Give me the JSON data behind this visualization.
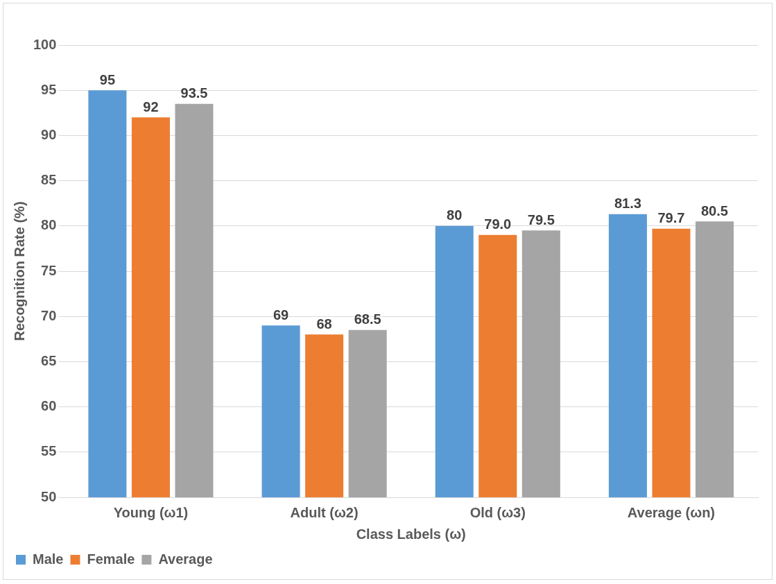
{
  "chart_data": {
    "type": "bar",
    "xlabel": "Class Labels (ω)",
    "ylabel": "Recognition Rate (%)",
    "categories": [
      "Young (ω1)",
      "Adult (ω2)",
      "Old (ω3)",
      "Average (ωn)"
    ],
    "series": [
      {
        "name": "Male",
        "color": "#5b9bd5",
        "values": [
          95,
          69,
          80,
          81.3
        ],
        "value_labels": [
          "95",
          "69",
          "80",
          "81.3"
        ]
      },
      {
        "name": "Female",
        "color": "#ed7d31",
        "values": [
          92,
          68,
          79.0,
          79.7
        ],
        "value_labels": [
          "92",
          "68",
          "79.0",
          "79.7"
        ]
      },
      {
        "name": "Average",
        "color": "#a5a5a5",
        "values": [
          93.5,
          68.5,
          79.5,
          80.5
        ],
        "value_labels": [
          "93.5",
          "68.5",
          "79.5",
          "80.5"
        ]
      }
    ],
    "ylim": [
      50,
      100
    ],
    "yticks": [
      50,
      55,
      60,
      65,
      70,
      75,
      80,
      85,
      90,
      95,
      100
    ],
    "grid": "y",
    "legend": "bottom left"
  }
}
